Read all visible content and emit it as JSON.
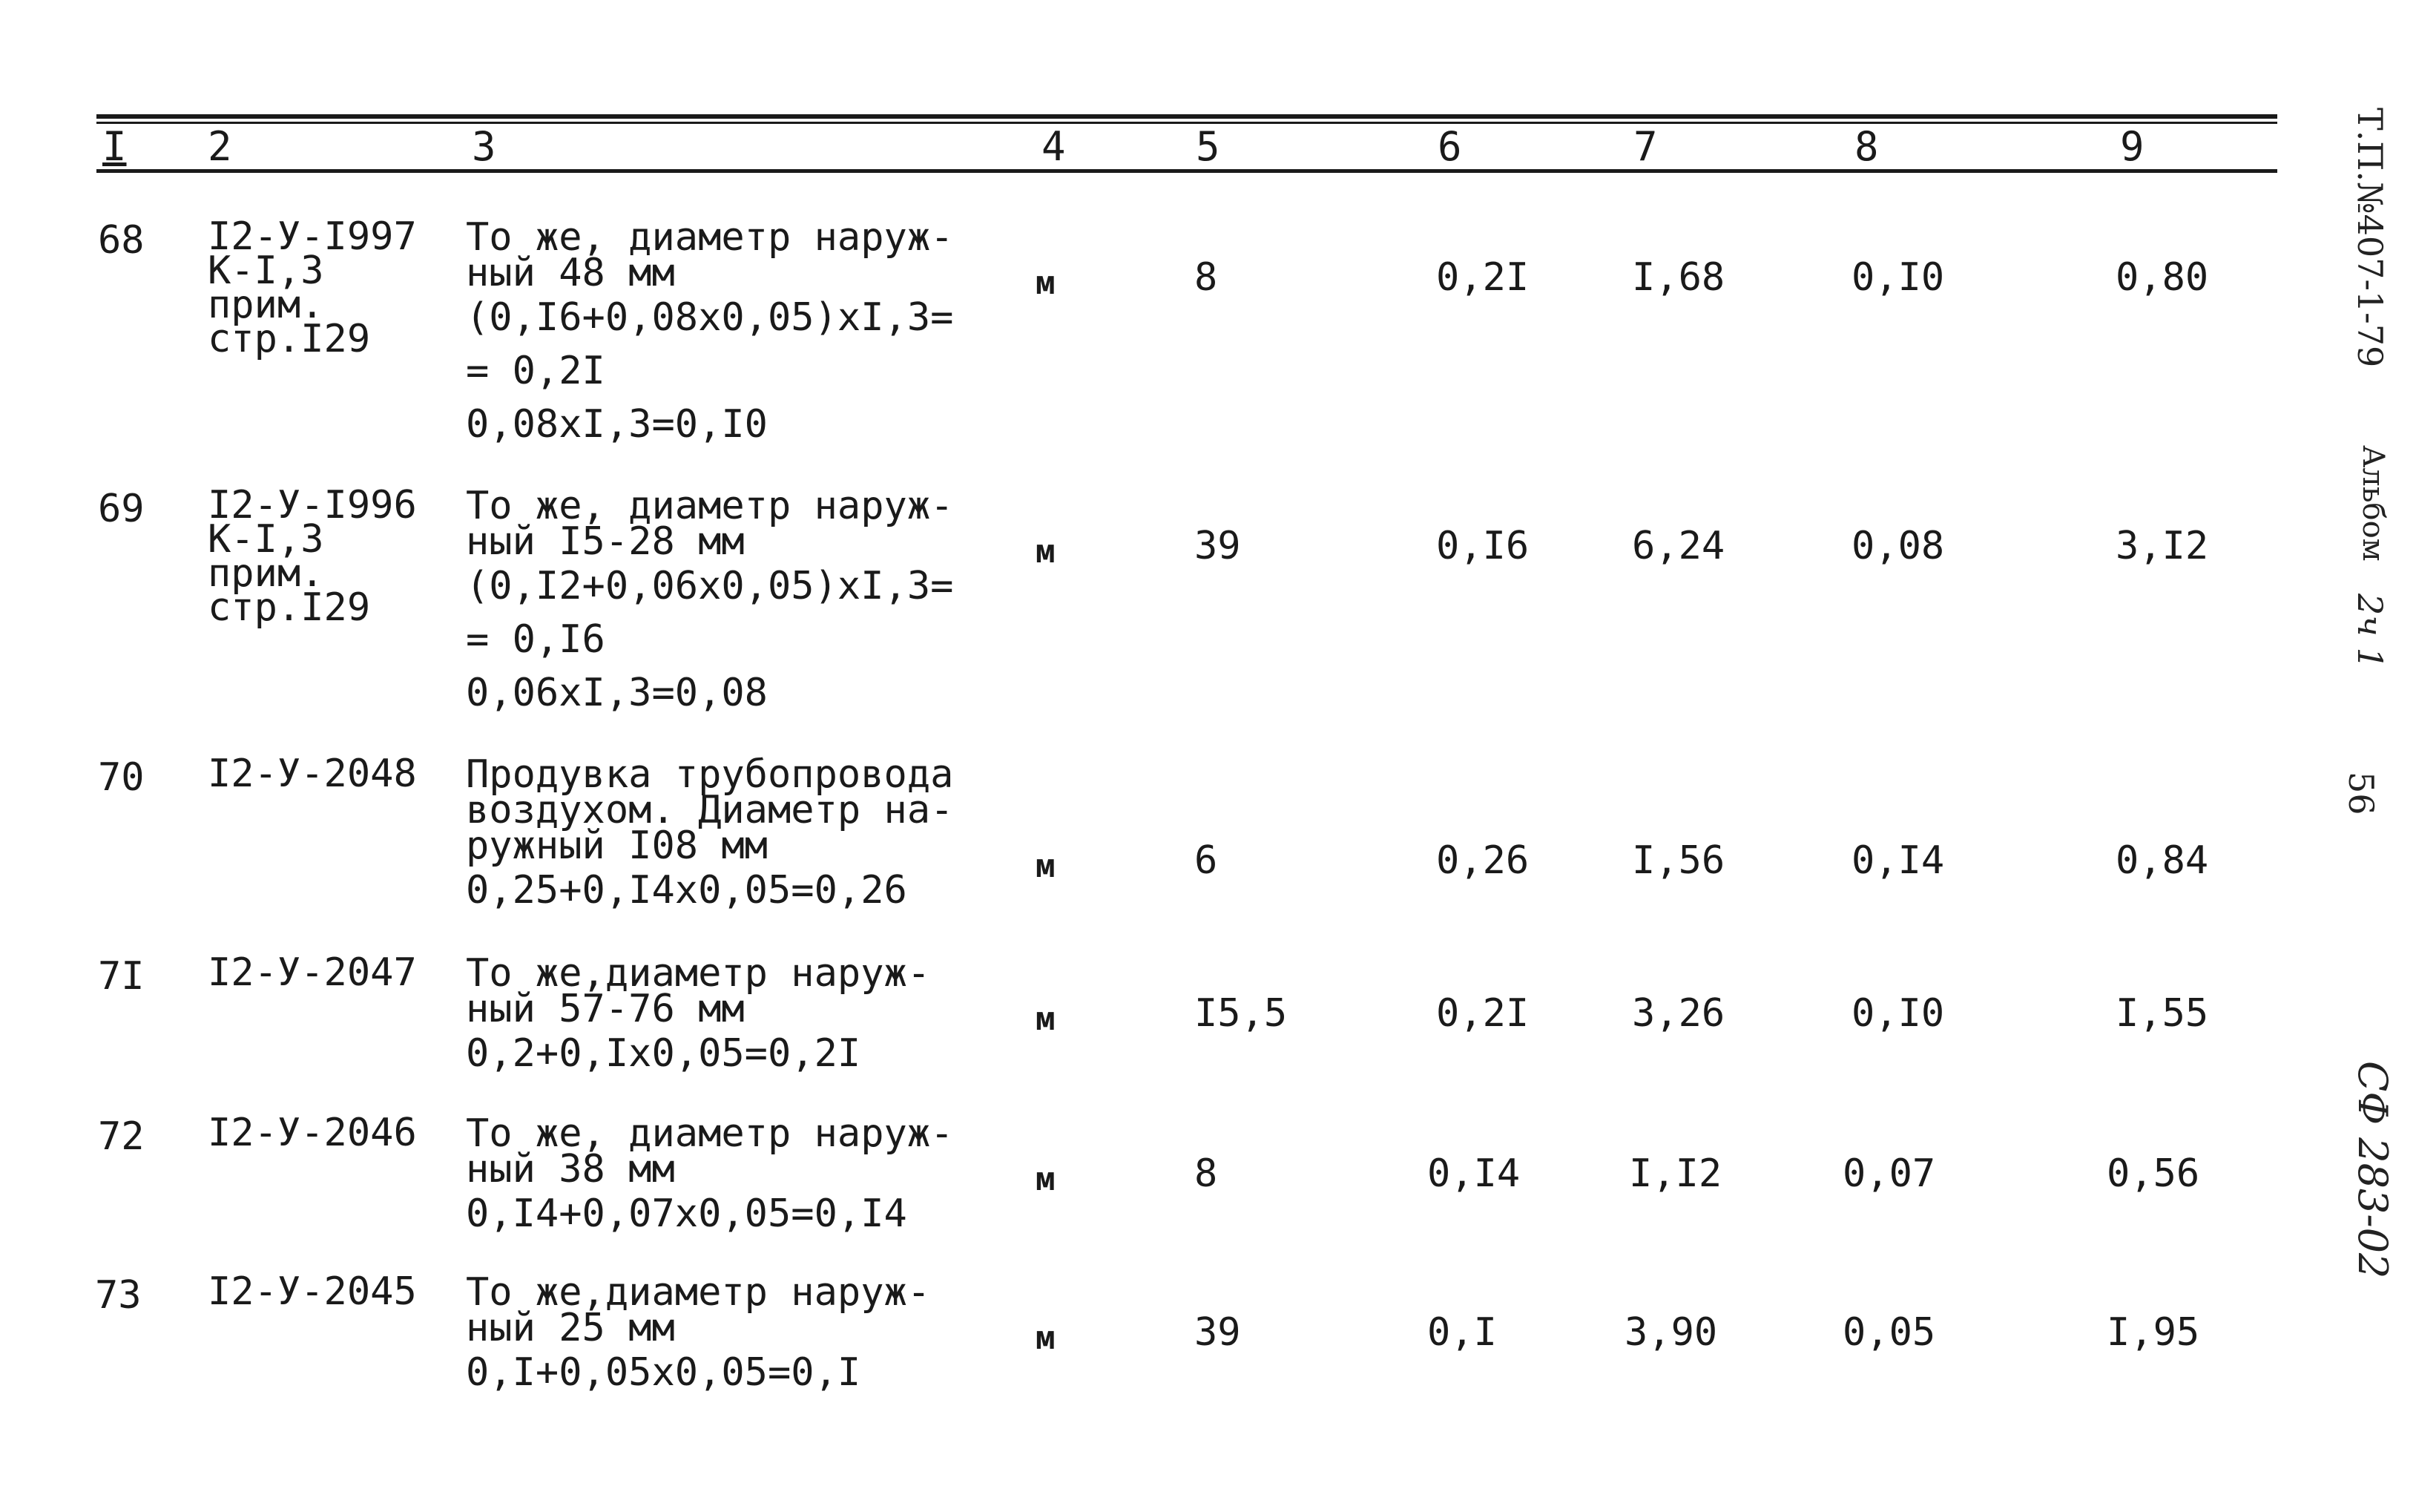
{
  "header": {
    "columns": [
      "I",
      "2",
      "3",
      "4",
      "5",
      "6",
      "7",
      "8",
      "9"
    ]
  },
  "rows": [
    {
      "num": "68",
      "code_lines": [
        "I2-У-I997",
        "К-I,3",
        "прим.",
        "стр.I29"
      ],
      "desc_lines": [
        "То же, диаметр наруж-",
        "ный 48 мм"
      ],
      "calc_lines": [
        "(0,I6+0,08х0,05)хI,3=",
        "= 0,2I",
        "0,08хI,3=0,I0"
      ],
      "unit": "м",
      "c5": "8",
      "c6": "0,2I",
      "c7": "I,68",
      "c8": "0,I0",
      "c9": "0,80"
    },
    {
      "num": "69",
      "code_lines": [
        "I2-У-I996",
        "К-I,3",
        "прим.",
        "стр.I29"
      ],
      "desc_lines": [
        "То же, диаметр наруж-",
        "ный I5-28 мм"
      ],
      "calc_lines": [
        "(0,I2+0,06х0,05)хI,3=",
        "= 0,I6",
        "0,06хI,3=0,08"
      ],
      "unit": "м",
      "c5": "39",
      "c6": "0,I6",
      "c7": "6,24",
      "c8": "0,08",
      "c9": "3,I2"
    },
    {
      "num": "70",
      "code_lines": [
        "I2-У-2048"
      ],
      "desc_lines": [
        "Продувка трубопровода",
        "воздухом. Диаметр на-",
        "ружный I08 мм"
      ],
      "calc_lines": [
        "0,25+0,I4х0,05=0,26"
      ],
      "unit": "м",
      "c5": "6",
      "c6": "0,26",
      "c7": "I,56",
      "c8": "0,I4",
      "c9": "0,84"
    },
    {
      "num": "7I",
      "code_lines": [
        "I2-У-2047"
      ],
      "desc_lines": [
        "То же,диаметр наруж-",
        "ный 57-76 мм"
      ],
      "calc_lines": [
        "0,2+0,Iх0,05=0,2I"
      ],
      "unit": "м",
      "c5": "I5,5",
      "c6": "0,2I",
      "c7": "3,26",
      "c8": "0,I0",
      "c9": "I,55"
    },
    {
      "num": "72",
      "code_lines": [
        "I2-У-2046"
      ],
      "desc_lines": [
        "То же, диаметр наруж-",
        "ный 38 мм"
      ],
      "calc_lines": [
        "0,I4+0,07х0,05=0,I4"
      ],
      "unit": "м",
      "c5": "8",
      "c6": "0,I4",
      "c7": "I,I2",
      "c8": "0,07",
      "c9": "0,56"
    },
    {
      "num": "73",
      "code_lines": [
        "I2-У-2045"
      ],
      "desc_lines": [
        "То же,диаметр наруж-",
        "ный 25 мм"
      ],
      "calc_lines": [
        "0,I+0,05х0,05=0,I"
      ],
      "unit": "м",
      "c5": "39",
      "c6": "0,I",
      "c7": "3,90",
      "c8": "0,05",
      "c9": "I,95"
    }
  ],
  "margin": {
    "doc_ref": "Т.П.№407-1-79",
    "album": "Альбом",
    "album_part": "2ч 1",
    "page_num": "56",
    "sheet_code": "СФ 283-02"
  }
}
